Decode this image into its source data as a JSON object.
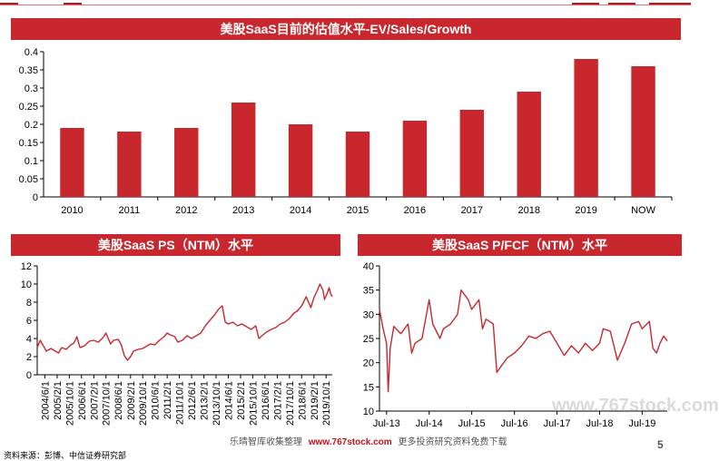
{
  "watermark": {
    "left_text": "乐晴智库收集整理",
    "url": "www.767stock.com",
    "right_text": "更多投资研究资料免费下载",
    "corner": "www.767stock.com"
  },
  "source": "资料来源：彭博、中信证券研究部",
  "page_number": "5",
  "colors": {
    "accent": "#c8282d",
    "header_line": "#c0141c"
  },
  "chart_data": [
    {
      "id": "ev-sales-growth",
      "type": "bar",
      "title": "美股SaaS目前的估值水平-EV/Sales/Growth",
      "categories": [
        "2010",
        "2011",
        "2012",
        "2013",
        "2014",
        "2015",
        "2016",
        "2017",
        "2018",
        "2019",
        "NOW"
      ],
      "values": [
        0.19,
        0.18,
        0.19,
        0.26,
        0.2,
        0.18,
        0.21,
        0.24,
        0.29,
        0.38,
        0.36
      ],
      "ylim": [
        0,
        0.4
      ],
      "yticks": [
        "0",
        "0.05",
        "0.1",
        "0.15",
        "0.2",
        "0.25",
        "0.3",
        "0.35",
        "0.4"
      ],
      "grid": false,
      "legend": "none"
    },
    {
      "id": "ps-ntm",
      "type": "line",
      "title": "美股SaaS PS（NTM）水平",
      "ylim": [
        0,
        12
      ],
      "yticks": [
        "0",
        "2",
        "4",
        "6",
        "8",
        "10",
        "12"
      ],
      "xticks": [
        "2004/6/1",
        "2005/2/1",
        "2005/10/1",
        "2006/6/1",
        "2007/2/1",
        "2007/10/1",
        "2008/6/1",
        "2009/2/1",
        "2009/10/1",
        "2010/6/1",
        "2011/2/1",
        "2011/10/1",
        "2012/6/1",
        "2013/2/1",
        "2013/10/1",
        "2014/6/1",
        "2015/2/1",
        "2015/10/1",
        "2016/6/1",
        "2017/2/1",
        "2017/10/1",
        "2018/6/1",
        "2019/2/1",
        "2019/10/1"
      ],
      "x_start": "2004/1/1",
      "x_end": "2020/2/1",
      "series": [
        {
          "points": [
            [
              "2004/1/1",
              3.0
            ],
            [
              "2004/3/1",
              3.8
            ],
            [
              "2004/5/1",
              3.2
            ],
            [
              "2004/7/1",
              2.6
            ],
            [
              "2004/10/1",
              2.9
            ],
            [
              "2005/1/1",
              2.6
            ],
            [
              "2005/3/1",
              2.4
            ],
            [
              "2005/5/1",
              3.0
            ],
            [
              "2005/8/1",
              2.8
            ],
            [
              "2005/11/1",
              3.3
            ],
            [
              "2006/1/1",
              3.5
            ],
            [
              "2006/3/1",
              4.2
            ],
            [
              "2006/5/1",
              3.0
            ],
            [
              "2006/8/1",
              3.2
            ],
            [
              "2006/11/1",
              3.7
            ],
            [
              "2007/2/1",
              3.8
            ],
            [
              "2007/5/1",
              3.6
            ],
            [
              "2007/8/1",
              4.1
            ],
            [
              "2007/10/1",
              4.6
            ],
            [
              "2008/1/1",
              3.4
            ],
            [
              "2008/3/1",
              3.8
            ],
            [
              "2008/6/1",
              3.9
            ],
            [
              "2008/8/1",
              3.3
            ],
            [
              "2008/10/1",
              2.1
            ],
            [
              "2008/12/1",
              1.6
            ],
            [
              "2009/2/1",
              2.0
            ],
            [
              "2009/4/1",
              2.6
            ],
            [
              "2009/7/1",
              2.8
            ],
            [
              "2009/10/1",
              2.9
            ],
            [
              "2010/1/1",
              3.2
            ],
            [
              "2010/3/1",
              3.4
            ],
            [
              "2010/6/1",
              3.3
            ],
            [
              "2010/9/1",
              3.8
            ],
            [
              "2010/12/1",
              4.2
            ],
            [
              "2011/2/1",
              4.6
            ],
            [
              "2011/4/1",
              4.4
            ],
            [
              "2011/7/1",
              4.2
            ],
            [
              "2011/9/1",
              3.6
            ],
            [
              "2011/12/1",
              3.8
            ],
            [
              "2012/3/1",
              4.3
            ],
            [
              "2012/6/1",
              4.0
            ],
            [
              "2012/9/1",
              4.3
            ],
            [
              "2012/12/1",
              4.6
            ],
            [
              "2013/3/1",
              5.4
            ],
            [
              "2013/6/1",
              6.0
            ],
            [
              "2013/9/1",
              6.6
            ],
            [
              "2013/12/1",
              7.3
            ],
            [
              "2014/2/1",
              7.6
            ],
            [
              "2014/4/1",
              5.8
            ],
            [
              "2014/6/1",
              5.6
            ],
            [
              "2014/9/1",
              5.8
            ],
            [
              "2014/12/1",
              5.4
            ],
            [
              "2015/3/1",
              5.6
            ],
            [
              "2015/6/1",
              5.3
            ],
            [
              "2015/9/1",
              5.0
            ],
            [
              "2015/12/1",
              5.4
            ],
            [
              "2016/2/1",
              4.0
            ],
            [
              "2016/4/1",
              4.3
            ],
            [
              "2016/7/1",
              4.7
            ],
            [
              "2016/10/1",
              5.0
            ],
            [
              "2017/1/1",
              5.2
            ],
            [
              "2017/4/1",
              5.6
            ],
            [
              "2017/7/1",
              5.8
            ],
            [
              "2017/10/1",
              6.2
            ],
            [
              "2018/1/1",
              6.8
            ],
            [
              "2018/3/1",
              7.0
            ],
            [
              "2018/6/1",
              7.6
            ],
            [
              "2018/9/1",
              8.6
            ],
            [
              "2018/11/1",
              7.8
            ],
            [
              "2018/12/1",
              7.4
            ],
            [
              "2019/2/1",
              8.5
            ],
            [
              "2019/4/1",
              9.2
            ],
            [
              "2019/6/1",
              10.0
            ],
            [
              "2019/8/1",
              9.3
            ],
            [
              "2019/9/1",
              8.3
            ],
            [
              "2019/11/1",
              9.1
            ],
            [
              "2019/12/1",
              9.6
            ],
            [
              "2020/1/1",
              8.9
            ],
            [
              "2020/2/1",
              8.6
            ]
          ]
        }
      ],
      "grid": false,
      "legend": "none"
    },
    {
      "id": "pfcf-ntm",
      "type": "line",
      "title": "美股SaaS P/FCF（NTM）水平",
      "ylim": [
        10,
        40
      ],
      "yticks": [
        "10",
        "15",
        "20",
        "25",
        "30",
        "35",
        "40"
      ],
      "xticks": [
        "Jul-13",
        "Jul-14",
        "Jul-15",
        "Jul-16",
        "Jul-17",
        "Jul-18",
        "Jul-19"
      ],
      "x_start": "2013/5/1",
      "x_end": "2020/2/1",
      "series": [
        {
          "points": [
            [
              "2013/5/1",
              31.0
            ],
            [
              "2013/6/1",
              27.0
            ],
            [
              "2013/7/1",
              24.0
            ],
            [
              "2013/7/15",
              14.0
            ],
            [
              "2013/8/1",
              23.0
            ],
            [
              "2013/9/1",
              27.5
            ],
            [
              "2013/11/1",
              26.0
            ],
            [
              "2014/1/1",
              28.0
            ],
            [
              "2014/2/1",
              22.0
            ],
            [
              "2014/3/1",
              24.0
            ],
            [
              "2014/5/1",
              25.0
            ],
            [
              "2014/7/1",
              33.0
            ],
            [
              "2014/8/1",
              28.0
            ],
            [
              "2014/9/1",
              26.5
            ],
            [
              "2014/10/1",
              25.0
            ],
            [
              "2014/11/1",
              27.0
            ],
            [
              "2015/1/1",
              28.0
            ],
            [
              "2015/3/1",
              30.0
            ],
            [
              "2015/4/1",
              35.0
            ],
            [
              "2015/6/1",
              33.0
            ],
            [
              "2015/7/1",
              31.0
            ],
            [
              "2015/9/1",
              33.0
            ],
            [
              "2015/10/1",
              27.0
            ],
            [
              "2015/11/1",
              29.0
            ],
            [
              "2016/1/1",
              28.0
            ],
            [
              "2016/2/1",
              18.0
            ],
            [
              "2016/3/1",
              19.0
            ],
            [
              "2016/5/1",
              21.0
            ],
            [
              "2016/7/1",
              22.0
            ],
            [
              "2016/9/1",
              23.5
            ],
            [
              "2016/11/1",
              25.5
            ],
            [
              "2017/1/1",
              25.0
            ],
            [
              "2017/3/1",
              26.0
            ],
            [
              "2017/5/1",
              26.5
            ],
            [
              "2017/7/1",
              24.0
            ],
            [
              "2017/9/1",
              21.5
            ],
            [
              "2017/11/1",
              23.5
            ],
            [
              "2018/1/1",
              22.0
            ],
            [
              "2018/3/1",
              24.0
            ],
            [
              "2018/5/1",
              22.5
            ],
            [
              "2018/7/1",
              24.0
            ],
            [
              "2018/8/1",
              27.0
            ],
            [
              "2018/10/1",
              26.5
            ],
            [
              "2018/12/1",
              20.5
            ],
            [
              "2019/2/1",
              24.0
            ],
            [
              "2019/4/1",
              28.0
            ],
            [
              "2019/6/1",
              28.5
            ],
            [
              "2019/7/1",
              27.0
            ],
            [
              "2019/9/1",
              28.5
            ],
            [
              "2019/10/1",
              23.0
            ],
            [
              "2019/11/1",
              22.0
            ],
            [
              "2019/12/1",
              24.0
            ],
            [
              "2020/1/1",
              25.5
            ],
            [
              "2020/2/1",
              24.5
            ]
          ]
        }
      ],
      "grid": false,
      "legend": "none"
    }
  ]
}
